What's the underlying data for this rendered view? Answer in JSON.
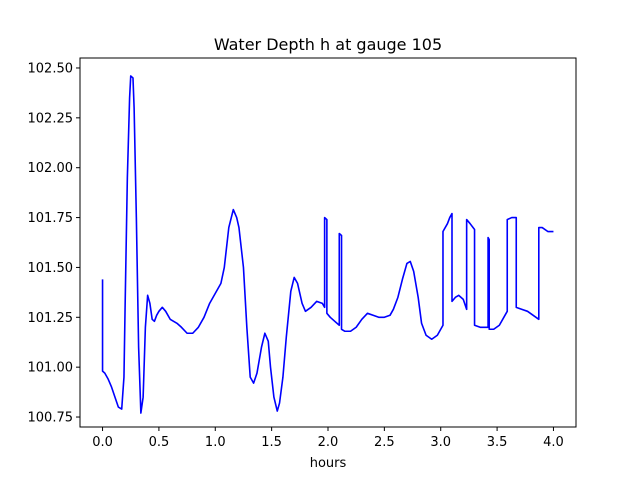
{
  "chart_data": {
    "type": "line",
    "title": "Water Depth h at gauge 105",
    "xlabel": "hours",
    "ylabel": "",
    "xlim": [
      -0.2,
      4.2
    ],
    "ylim": [
      100.7,
      102.55
    ],
    "xticks": [
      0.0,
      0.5,
      1.0,
      1.5,
      2.0,
      2.5,
      3.0,
      3.5,
      4.0
    ],
    "xtick_labels": [
      "0.0",
      "0.5",
      "1.0",
      "1.5",
      "2.0",
      "2.5",
      "3.0",
      "3.5",
      "4.0"
    ],
    "yticks": [
      100.75,
      101.0,
      101.25,
      101.5,
      101.75,
      102.0,
      102.25,
      102.5
    ],
    "ytick_labels": [
      "100.75",
      "101.00",
      "101.25",
      "101.50",
      "101.75",
      "102.00",
      "102.25",
      "102.50"
    ],
    "grid": false,
    "legend": false,
    "series": [
      {
        "color": "#0000ff",
        "x": [
          0.0,
          0.0,
          0.02,
          0.05,
          0.08,
          0.11,
          0.14,
          0.17,
          0.19,
          0.2,
          0.22,
          0.24,
          0.25,
          0.27,
          0.28,
          0.3,
          0.32,
          0.34,
          0.36,
          0.38,
          0.4,
          0.42,
          0.44,
          0.46,
          0.48,
          0.5,
          0.53,
          0.56,
          0.6,
          0.63,
          0.66,
          0.7,
          0.75,
          0.8,
          0.85,
          0.9,
          0.95,
          1.0,
          1.05,
          1.08,
          1.12,
          1.16,
          1.19,
          1.21,
          1.25,
          1.28,
          1.31,
          1.34,
          1.37,
          1.41,
          1.44,
          1.47,
          1.49,
          1.52,
          1.55,
          1.57,
          1.6,
          1.63,
          1.67,
          1.7,
          1.73,
          1.77,
          1.8,
          1.85,
          1.9,
          1.95,
          1.97,
          1.97,
          1.99,
          1.99,
          2.02,
          2.06,
          2.1,
          2.1,
          2.12,
          2.12,
          2.15,
          2.2,
          2.25,
          2.3,
          2.35,
          2.4,
          2.45,
          2.5,
          2.55,
          2.58,
          2.62,
          2.66,
          2.7,
          2.73,
          2.76,
          2.8,
          2.83,
          2.87,
          2.92,
          2.97,
          3.02,
          3.02,
          3.06,
          3.08,
          3.1,
          3.1,
          3.13,
          3.16,
          3.2,
          3.23,
          3.23,
          3.26,
          3.3,
          3.3,
          3.35,
          3.4,
          3.42,
          3.42,
          3.43,
          3.43,
          3.47,
          3.52,
          3.57,
          3.59,
          3.59,
          3.63,
          3.67,
          3.67,
          3.72,
          3.77,
          3.82,
          3.87,
          3.87,
          3.9,
          3.95,
          4.0
        ],
        "y": [
          101.44,
          100.98,
          100.97,
          100.94,
          100.9,
          100.85,
          100.8,
          100.79,
          100.95,
          101.3,
          101.95,
          102.35,
          102.46,
          102.45,
          102.3,
          101.75,
          101.1,
          100.77,
          100.85,
          101.2,
          101.36,
          101.32,
          101.24,
          101.23,
          101.26,
          101.28,
          101.3,
          101.28,
          101.24,
          101.23,
          101.22,
          101.2,
          101.17,
          101.17,
          101.2,
          101.25,
          101.32,
          101.37,
          101.42,
          101.5,
          101.7,
          101.79,
          101.75,
          101.7,
          101.5,
          101.2,
          100.95,
          100.92,
          100.97,
          101.1,
          101.17,
          101.13,
          101.0,
          100.85,
          100.78,
          100.82,
          100.95,
          101.15,
          101.38,
          101.45,
          101.42,
          101.32,
          101.28,
          101.3,
          101.33,
          101.32,
          101.3,
          101.75,
          101.74,
          101.27,
          101.25,
          101.23,
          101.21,
          101.67,
          101.66,
          101.19,
          101.18,
          101.18,
          101.2,
          101.24,
          101.27,
          101.26,
          101.25,
          101.25,
          101.26,
          101.29,
          101.35,
          101.44,
          101.52,
          101.53,
          101.48,
          101.35,
          101.22,
          101.16,
          101.14,
          101.16,
          101.21,
          101.68,
          101.72,
          101.75,
          101.77,
          101.33,
          101.35,
          101.36,
          101.34,
          101.29,
          101.74,
          101.72,
          101.69,
          101.21,
          101.2,
          101.2,
          101.2,
          101.65,
          101.64,
          101.19,
          101.19,
          101.21,
          101.26,
          101.28,
          101.74,
          101.75,
          101.75,
          101.3,
          101.29,
          101.28,
          101.26,
          101.24,
          101.7,
          101.7,
          101.68,
          101.68
        ]
      }
    ]
  }
}
